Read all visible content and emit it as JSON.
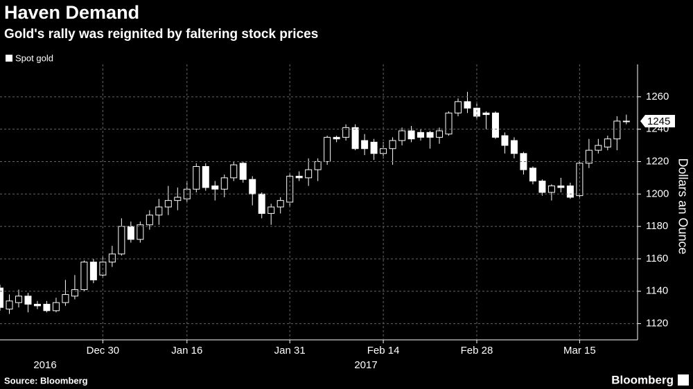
{
  "chart_data": {
    "type": "candlestick",
    "title": "Haven Demand",
    "subtitle": "Gold's rally was reignited by faltering stock prices",
    "categories": [
      null,
      null,
      null,
      null,
      null,
      null,
      null,
      null,
      null,
      null,
      null,
      "Dec 30",
      null,
      null,
      null,
      null,
      null,
      null,
      null,
      null,
      "Jan 16",
      null,
      null,
      null,
      null,
      null,
      null,
      null,
      null,
      null,
      null,
      "Jan 31",
      null,
      null,
      null,
      null,
      null,
      null,
      null,
      null,
      null,
      "Feb 14",
      null,
      null,
      null,
      null,
      null,
      null,
      null,
      null,
      null,
      "Feb 28",
      null,
      null,
      null,
      null,
      null,
      null,
      null,
      null,
      null,
      null,
      "Mar 15",
      null,
      null,
      null,
      null,
      null
    ],
    "year_labels": [
      "2016",
      "2017"
    ],
    "series": [
      {
        "name": "Spot gold",
        "color": "#ffffff",
        "open": [
          1142,
          1129,
          1133,
          1137,
          1132,
          1132,
          1128,
          1133,
          1137,
          1141,
          1158,
          1150,
          1158,
          1163,
          1180,
          1172,
          1181,
          1187,
          1192,
          1196,
          1197,
          1203,
          1217,
          1205,
          1203,
          1210,
          1219,
          1209,
          1200,
          1188,
          1192,
          1195,
          1211,
          1210,
          1215,
          1220,
          1235,
          1235,
          1241,
          1233,
          1232,
          1225,
          1228,
          1233,
          1239,
          1238,
          1238,
          1235,
          1237,
          1250,
          1257,
          1253,
          1250,
          1250,
          1236,
          1233,
          1225,
          1216,
          1208,
          1201,
          1205,
          1205,
          1199,
          1219,
          1227,
          1229,
          1234,
          1245
        ],
        "high": [
          1144,
          1138,
          1141,
          1139,
          1134,
          1134,
          1136,
          1147,
          1150,
          1159,
          1160,
          1162,
          1168,
          1185,
          1183,
          1183,
          1190,
          1197,
          1205,
          1204,
          1208,
          1219,
          1219,
          1208,
          1212,
          1220,
          1220,
          1211,
          1201,
          1194,
          1198,
          1213,
          1214,
          1222,
          1222,
          1236,
          1236,
          1243,
          1243,
          1237,
          1234,
          1232,
          1235,
          1241,
          1242,
          1240,
          1239,
          1241,
          1251,
          1259,
          1263,
          1257,
          1251,
          1251,
          1238,
          1235,
          1226,
          1217,
          1209,
          1206,
          1210,
          1207,
          1220,
          1234,
          1234,
          1236,
          1248,
          1249
        ],
        "low": [
          1128,
          1126,
          1130,
          1127,
          1129,
          1127,
          1127,
          1131,
          1135,
          1140,
          1145,
          1148,
          1155,
          1162,
          1170,
          1170,
          1178,
          1181,
          1187,
          1190,
          1195,
          1201,
          1202,
          1196,
          1198,
          1208,
          1207,
          1193,
          1185,
          1181,
          1188,
          1192,
          1208,
          1205,
          1208,
          1218,
          1232,
          1233,
          1227,
          1224,
          1221,
          1222,
          1218,
          1230,
          1232,
          1233,
          1228,
          1231,
          1236,
          1248,
          1250,
          1246,
          1240,
          1234,
          1225,
          1222,
          1212,
          1206,
          1199,
          1196,
          1201,
          1197,
          1198,
          1216,
          1225,
          1227,
          1227,
          1243
        ],
        "close": [
          1130,
          1134,
          1137,
          1132,
          1131,
          1128,
          1133,
          1138,
          1141,
          1158,
          1147,
          1158,
          1163,
          1180,
          1172,
          1181,
          1187,
          1192,
          1196,
          1198,
          1203,
          1217,
          1204,
          1203,
          1210,
          1218,
          1209,
          1200,
          1188,
          1192,
          1196,
          1211,
          1210,
          1215,
          1220,
          1235,
          1234,
          1241,
          1228,
          1228,
          1225,
          1228,
          1233,
          1239,
          1234,
          1235,
          1235,
          1239,
          1250,
          1257,
          1253,
          1248,
          1249,
          1235,
          1230,
          1225,
          1215,
          1208,
          1201,
          1205,
          1204,
          1198,
          1219,
          1227,
          1230,
          1234,
          1245,
          1245
        ]
      }
    ],
    "ylim": [
      1110,
      1280
    ],
    "yticks": [
      1120,
      1140,
      1160,
      1180,
      1200,
      1220,
      1240,
      1260
    ],
    "ylabel": "Dollars an Ounce",
    "grid": true,
    "source": "Source: Bloomberg",
    "brand": "Bloomberg"
  }
}
